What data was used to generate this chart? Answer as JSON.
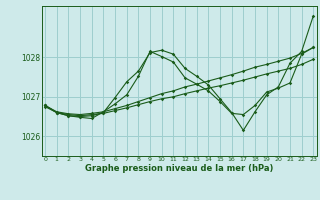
{
  "title": "Graphe pression niveau de la mer (hPa)",
  "background_color": "#ceeaea",
  "grid_color": "#9ecece",
  "line_color": "#1a5c1a",
  "ylim": [
    1025.5,
    1029.3
  ],
  "xlim": [
    -0.3,
    23.3
  ],
  "yticks": [
    1026,
    1027,
    1028
  ],
  "xticks": [
    0,
    1,
    2,
    3,
    4,
    5,
    6,
    7,
    8,
    9,
    10,
    11,
    12,
    13,
    14,
    15,
    16,
    17,
    18,
    19,
    20,
    21,
    22,
    23
  ],
  "lines": [
    {
      "x": [
        0,
        1,
        2,
        3,
        4,
        5,
        6,
        7,
        8,
        9,
        10,
        11,
        12,
        13,
        14,
        15,
        16,
        17,
        18,
        19,
        20,
        21,
        22,
        23
      ],
      "y": [
        1026.75,
        1026.6,
        1026.55,
        1026.52,
        1026.55,
        1026.58,
        1026.65,
        1026.72,
        1026.8,
        1026.88,
        1026.95,
        1027.0,
        1027.08,
        1027.15,
        1027.22,
        1027.28,
        1027.35,
        1027.42,
        1027.5,
        1027.58,
        1027.65,
        1027.72,
        1027.82,
        1027.95
      ]
    },
    {
      "x": [
        0,
        1,
        2,
        3,
        4,
        5,
        6,
        7,
        8,
        9,
        10,
        11,
        12,
        13,
        14,
        15,
        16,
        17,
        18,
        19,
        20,
        21,
        22,
        23
      ],
      "y": [
        1026.78,
        1026.62,
        1026.57,
        1026.55,
        1026.58,
        1026.62,
        1026.7,
        1026.78,
        1026.88,
        1026.98,
        1027.08,
        1027.15,
        1027.25,
        1027.32,
        1027.4,
        1027.48,
        1027.56,
        1027.65,
        1027.75,
        1027.82,
        1027.9,
        1027.98,
        1028.1,
        1028.25
      ]
    },
    {
      "x": [
        0,
        1,
        2,
        3,
        4,
        5,
        6,
        7,
        8,
        9,
        10,
        11,
        12,
        13,
        14,
        15,
        16,
        17,
        18,
        19,
        20,
        21,
        22,
        23
      ],
      "y": [
        1026.78,
        1026.6,
        1026.52,
        1026.5,
        1026.52,
        1026.6,
        1026.98,
        1027.38,
        1027.65,
        1028.12,
        1028.18,
        1028.08,
        1027.72,
        1027.52,
        1027.3,
        1026.95,
        1026.6,
        1026.15,
        1026.62,
        1027.05,
        1027.25,
        1027.85,
        1028.15,
        1029.05
      ]
    },
    {
      "x": [
        0,
        1,
        2,
        3,
        4,
        5,
        6,
        7,
        8,
        9,
        10,
        11,
        12,
        13,
        14,
        15,
        16,
        17,
        18,
        19,
        20,
        21,
        22,
        23
      ],
      "y": [
        1026.78,
        1026.6,
        1026.52,
        1026.48,
        1026.45,
        1026.62,
        1026.82,
        1027.05,
        1027.52,
        1028.15,
        1028.02,
        1027.88,
        1027.48,
        1027.32,
        1027.15,
        1026.88,
        1026.58,
        1026.55,
        1026.78,
        1027.12,
        1027.22,
        1027.35,
        1028.08,
        1028.25
      ]
    }
  ]
}
